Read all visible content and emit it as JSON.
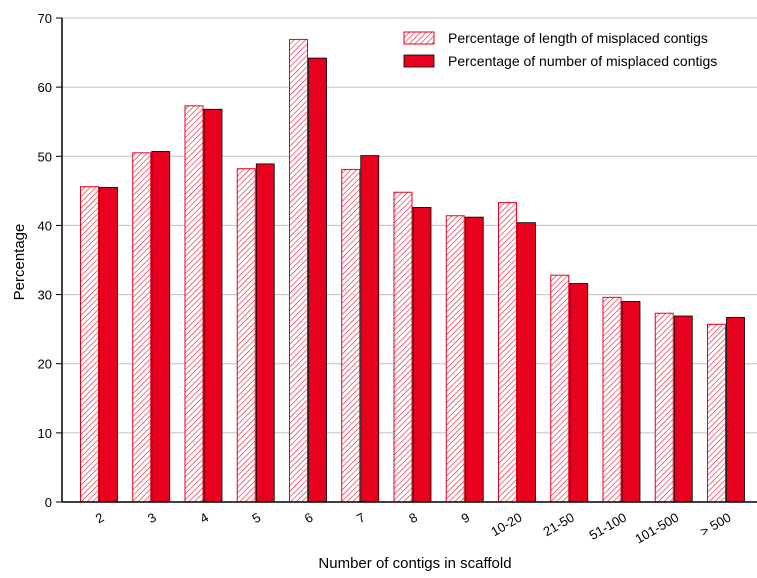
{
  "chart_data": {
    "type": "bar",
    "title": "",
    "xlabel": "Number of contigs in scaffold",
    "ylabel": "Percentage",
    "ylim": [
      0,
      70
    ],
    "yticks": [
      0,
      10,
      20,
      30,
      40,
      50,
      60,
      70
    ],
    "grid": true,
    "legend_position": "top-right",
    "categories": [
      "2",
      "3",
      "4",
      "5",
      "6",
      "7",
      "8",
      "9",
      "10-20",
      "21-50",
      "51-100",
      "101-500",
      "> 500"
    ],
    "series": [
      {
        "name": "Percentage of length of misplaced contigs",
        "style": "hatched",
        "color": "#e8001f",
        "values": [
          45.6,
          50.5,
          57.3,
          48.2,
          66.9,
          48.1,
          44.8,
          41.4,
          43.3,
          32.8,
          29.6,
          27.3,
          25.7
        ]
      },
      {
        "name": "Percentage of number of misplaced contigs",
        "style": "solid",
        "color": "#e8001f",
        "values": [
          45.5,
          50.7,
          56.8,
          48.9,
          64.2,
          50.1,
          42.6,
          41.2,
          40.4,
          31.6,
          29.0,
          26.9,
          26.7
        ]
      }
    ]
  }
}
